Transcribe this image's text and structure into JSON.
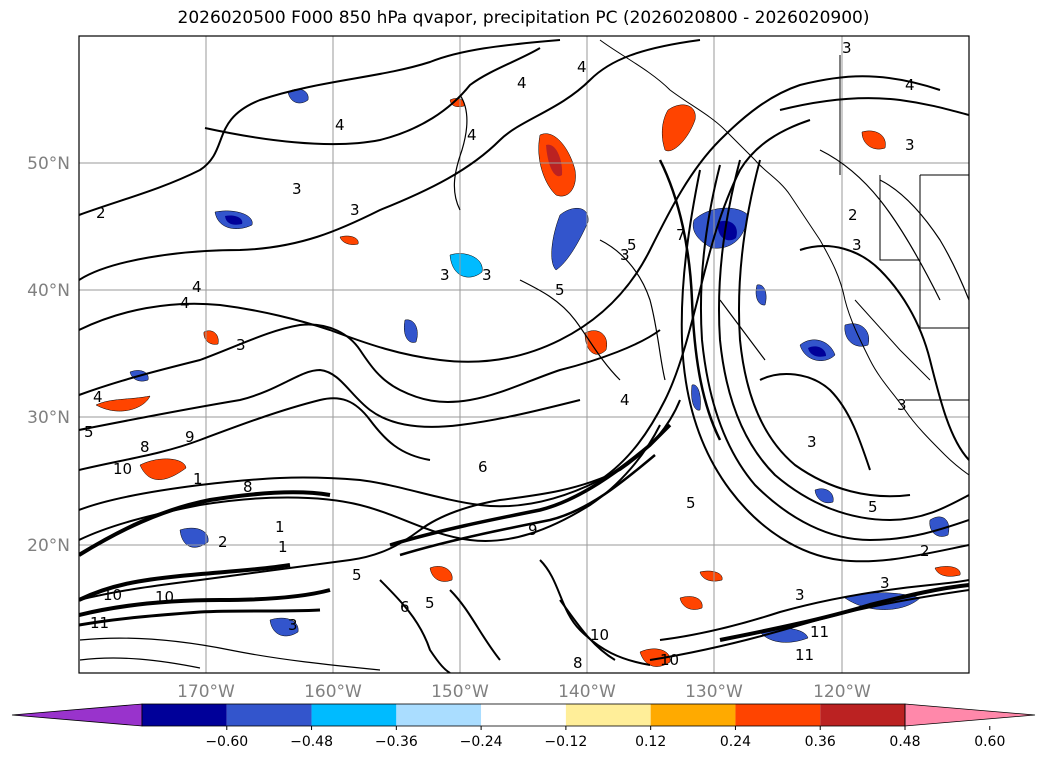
{
  "title": "2026020500 F000 850 hPa qvapor, precipitation PC (2026020800 - 2026020900)",
  "lat_labels": [
    "50°N",
    "40°N",
    "30°N",
    "20°N"
  ],
  "lon_labels": [
    "170°W",
    "160°W",
    "150°W",
    "140°W",
    "130°W",
    "120°W"
  ],
  "colorbar": {
    "ticks": [
      "−0.60",
      "−0.48",
      "−0.36",
      "−0.24",
      "−0.12",
      "0.12",
      "0.24",
      "0.36",
      "0.48",
      "0.60"
    ],
    "colors": [
      "#9933cc",
      "#000099",
      "#3355cc",
      "#00bbff",
      "#aaddff",
      "#ffffff",
      "#ffee99",
      "#ffaa00",
      "#ff4400",
      "#bb2222",
      "#ff88aa"
    ]
  },
  "contour_labels": [
    "2",
    "3",
    "4",
    "4",
    "3",
    "4",
    "4",
    "3",
    "3",
    "4",
    "4",
    "3",
    "3",
    "4",
    "5",
    "8",
    "9",
    "10",
    "1",
    "8",
    "1",
    "2",
    "1",
    "10",
    "10",
    "11",
    "3",
    "5",
    "6",
    "5",
    "7",
    "3",
    "5",
    "3",
    "2",
    "3",
    "3",
    "4",
    "5",
    "3",
    "5",
    "2",
    "3",
    "3",
    "4",
    "11",
    "11",
    "10",
    "10",
    "8",
    "9",
    "5",
    "6"
  ],
  "map_features": {
    "coastline": "coastline",
    "state_borders": "state-borders"
  }
}
